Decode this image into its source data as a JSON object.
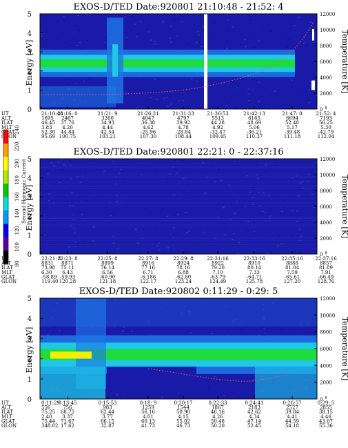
{
  "colors": {
    "background": "#1a1aa8",
    "band_green": "#1edc3c",
    "band_cyan": "#1ec8e6",
    "band_yellow": "#f0f000",
    "band_blue": "#1e78e6",
    "trace": "#ff5a5a",
    "frame": "#000000"
  },
  "colorbar": {
    "label": "Second Harmonic Current",
    "ticks": [
      "80",
      "100",
      "120",
      "140",
      "160",
      "180",
      "200",
      "220",
      "240"
    ],
    "colors": [
      "#000000",
      "#5a00a0",
      "#0000ff",
      "#0096ff",
      "#00dcdc",
      "#00c800",
      "#b4e600",
      "#ffff00",
      "#ffa000",
      "#ff0000"
    ]
  },
  "chart_data": [
    {
      "type": "heatmap",
      "title": "EXOS-D/TED   Date:920801   21:10:48 - 21:52: 4",
      "ylabel": "Energy [eV]",
      "y2label": "Temperature [K]",
      "ylim": [
        0,
        5
      ],
      "y2lim": [
        0,
        12000
      ],
      "yticks": [
        "0",
        "1",
        "2",
        "3",
        "4",
        "5"
      ],
      "y2ticks": [
        "0",
        "2000",
        "4000",
        "6000",
        "8000",
        "10000",
        "12000"
      ],
      "gap": true,
      "band": {
        "center": 2.4,
        "width": 0.45
      },
      "table": {
        "rows": [
          "UT",
          "ALT",
          "ILAT",
          "MLT",
          "GLAT",
          "GLON"
        ],
        "columns": [
          [
            "21:10:48",
            "1695",
            "46.45",
            "3.83",
            "52.30",
            "95.69"
          ],
          [
            "21:16: 0",
            "2467",
            "37.76",
            "4.20",
            "44.84",
            "100.75"
          ],
          [
            "21:21: 9",
            "3260",
            "34.93",
            "4.44",
            "42.54",
            "103.21"
          ],
          [
            "21:26:21",
            "4047",
            "36.38",
            "4.62",
            "-25.96",
            "107.30"
          ],
          [
            "21:31:33",
            "4797",
            "39.92",
            "4.78",
            "-28.84",
            "108.44"
          ],
          [
            "21:36:53",
            "5513",
            "44.28",
            "4.92",
            "-32.47",
            "109.45"
          ],
          [
            "21:42:13",
            "6165",
            "48.69",
            "5.06",
            "-36.21",
            "110.37"
          ],
          [
            "21:47: 0",
            "6694",
            "52.48",
            "5.17",
            "-39.48",
            "111.18"
          ],
          [
            "21:52: 4",
            "7193",
            "56.25",
            "5.30",
            "-42.79",
            "112.04"
          ]
        ]
      }
    },
    {
      "type": "heatmap",
      "title": "EXOS-D/TED   Date:920801   22:21: 0 - 22:37:16",
      "ylabel": "Energy [eV]",
      "y2label": "Temperature [K]",
      "ylim": [
        0,
        5
      ],
      "y2lim": [
        0,
        12000
      ],
      "yticks": [
        "0",
        "1",
        "2",
        "3",
        "4",
        "5"
      ],
      "y2ticks": [
        "0",
        "2000",
        "4000",
        "6000",
        "8000",
        "10000",
        "12000"
      ],
      "gap": false,
      "band": null,
      "table": {
        "rows": [
          "UT",
          "ALT",
          "ILAT",
          "MLT",
          "GLAT",
          "GLON"
        ],
        "columns": [
          [
            "22:21: 0",
            "8831",
            "73.98",
            "6.30",
            "-58.89",
            "119.40"
          ],
          [
            "22:23: 8",
            "8871",
            "75.11",
            "6.43",
            "-59.93",
            "120.28"
          ],
          [
            "22:25: 8",
            "8899",
            "76.14",
            "6.56",
            "-60.90",
            "121.18"
          ],
          [
            "22:27: 8",
            "8916",
            "77.16",
            "6.71",
            "-6.186",
            "122.17"
          ],
          [
            "22:29: 8",
            "8924",
            "78.16",
            "6.88",
            "-62.80",
            "123.24"
          ],
          [
            "22:31:16",
            "8922",
            "79.20",
            "7.10",
            "-63.79",
            "124.49"
          ],
          [
            "22:33:16",
            "8910",
            "80.14",
            "7.33",
            "-64.71",
            "125.78"
          ],
          [
            "22:35:16",
            "8888",
            "81.04",
            "7.59",
            "-65.61",
            "127.20"
          ],
          [
            "22:37:16",
            "8857",
            "81.89",
            "7.91",
            "-66.49",
            "128.76"
          ]
        ]
      }
    },
    {
      "type": "heatmap",
      "title": "EXOS-D/TED   Date:920802   0:11:29 - 0:29: 5",
      "ylabel": "Energy [eV]",
      "y2label": "Temperature [K]",
      "ylim": [
        0,
        5
      ],
      "y2lim": [
        0,
        12000
      ],
      "yticks": [
        "0",
        "1",
        "2",
        "3",
        "4",
        "5"
      ],
      "y2ticks": [
        "0",
        "2000",
        "4000",
        "6000",
        "8000",
        "10000",
        "12000"
      ],
      "gap": false,
      "band": {
        "center": 2.2,
        "width": 0.6
      },
      "table": {
        "rows": [
          "UT",
          "ALT",
          "ILAT",
          "MLT",
          "GLAT",
          "GLON"
        ],
        "columns": [
          [
            "0:11:29",
            "556",
            "75.25",
            "2.40",
            "75.44",
            "348.02"
          ],
          [
            "0:13:45",
            "756",
            "68.75",
            "3.37",
            "71.67",
            "17.62"
          ],
          [
            "0:15:53",
            "983",
            "62.44",
            "3.77",
            "66.15",
            "32.87"
          ],
          [
            "0:18: 9",
            "1259",
            "56.16",
            "4.01",
            "60.13",
            "41.73"
          ],
          [
            "0:20:17",
            "1544",
            "50.90",
            "4.15",
            "55.02",
            "46.73"
          ],
          [
            "0:22:33",
            "1867",
            "46.16",
            "4.26",
            "50.48",
            "50.20"
          ],
          [
            "0:24:41",
            "2183",
            "42.62",
            "4.34",
            "47.14",
            "52.45"
          ],
          [
            "0:26:57",
            "2527",
            "39.84",
            "4.41",
            "44.59",
            "54.18"
          ],
          [
            "0:29: 5",
            "2855",
            "38.15",
            "4.46",
            "43.07",
            "55.36"
          ]
        ]
      }
    }
  ]
}
